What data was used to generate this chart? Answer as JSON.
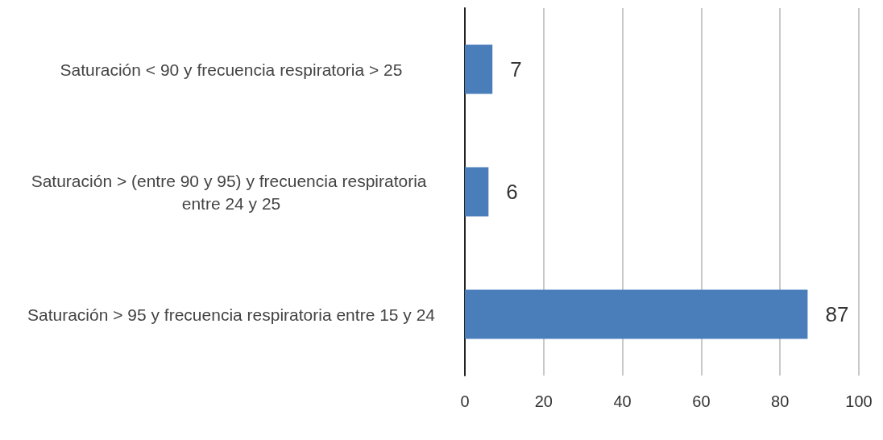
{
  "chart_data": {
    "type": "bar",
    "orientation": "horizontal",
    "categories": [
      "Saturación < 90 y frecuencia respiratoria > 25",
      "Saturación > (entre 90 y 95) y frecuencia respiratoria entre 24 y 25",
      "Saturación > 95 y frecuencia respiratoria entre 15 y 24"
    ],
    "values": [
      7,
      6,
      87
    ],
    "color": "#4a7ebb",
    "xlim": [
      0,
      100
    ],
    "xticks": [
      0,
      20,
      40,
      60,
      80,
      100
    ],
    "grid": "x",
    "data_labels": true
  }
}
